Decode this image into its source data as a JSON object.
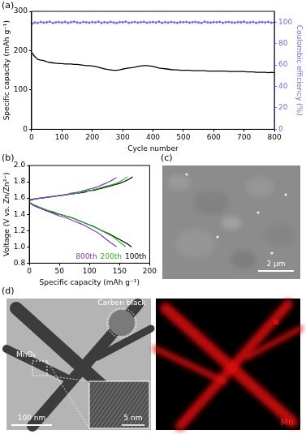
{
  "chart_data": [
    {
      "type": "line",
      "panel_label": "(a)",
      "xlabel": "Cycle number",
      "ylabel": "Specific capacity (mAh g⁻¹)",
      "y2label": "Coulombic efficiency (%)",
      "x": [
        1,
        10,
        20,
        30,
        40,
        50,
        60,
        70,
        80,
        90,
        100,
        110,
        120,
        130,
        140,
        150,
        160,
        170,
        180,
        190,
        200,
        210,
        220,
        230,
        240,
        250,
        260,
        270,
        280,
        290,
        300,
        310,
        320,
        330,
        340,
        350,
        360,
        370,
        380,
        390,
        400,
        410,
        420,
        430,
        440,
        450,
        460,
        470,
        480,
        490,
        500,
        510,
        520,
        530,
        540,
        550,
        560,
        570,
        580,
        590,
        600,
        610,
        620,
        630,
        640,
        650,
        660,
        670,
        680,
        690,
        700,
        710,
        720,
        730,
        740,
        750,
        760,
        770,
        780,
        790,
        800
      ],
      "series": [
        {
          "color": "#000000",
          "line_style": "solid",
          "axis": "y",
          "values": [
            195,
            185,
            178,
            176,
            175,
            172,
            170,
            169,
            168,
            167,
            167,
            166,
            166,
            166,
            165,
            165,
            164,
            163,
            162,
            162,
            161,
            160,
            158,
            156,
            154,
            152,
            151,
            150,
            150,
            151,
            153,
            155,
            156,
            157,
            158,
            160,
            161,
            162,
            162,
            161,
            160,
            158,
            156,
            155,
            154,
            153,
            152,
            151,
            151,
            150,
            150,
            150,
            150,
            149,
            149,
            149,
            149,
            149,
            148,
            148,
            148,
            148,
            148,
            148,
            148,
            147,
            147,
            147,
            147,
            147,
            147,
            146,
            146,
            146,
            145,
            145,
            145,
            145,
            144,
            145,
            144
          ]
        },
        {
          "color": "#7070e0",
          "line_style": "solid",
          "marker": "circle",
          "axis": "y2",
          "values": [
            98.5,
            99.6,
            99.2,
            100.1,
            99.4,
            99.8,
            100.3,
            99.1,
            99.7,
            100.0,
            99.5,
            100.2,
            99.3,
            99.9,
            100.4,
            99.6,
            99.2,
            100.1,
            99.8,
            99.4,
            100.0,
            99.7,
            100.3,
            99.2,
            99.9,
            99.5,
            100.2,
            99.6,
            99.1,
            100.0,
            99.8,
            100.4,
            99.3,
            99.7,
            100.1,
            99.5,
            99.9,
            100.2,
            99.4,
            99.8,
            100.0,
            99.6,
            100.3,
            99.2,
            99.9,
            99.5,
            100.1,
            99.7,
            99.3,
            100.0,
            99.8,
            100.2,
            99.4,
            99.9,
            100.1,
            99.6,
            99.2,
            100.3,
            99.7,
            99.5,
            100.0,
            99.8,
            100.2,
            99.3,
            99.9,
            100.1,
            99.6,
            99.4,
            100.0,
            99.8,
            100.3,
            99.5,
            99.7,
            100.1,
            99.2,
            99.9,
            100.0,
            99.6,
            100.2,
            99.4,
            99.8
          ]
        }
      ],
      "xlim": [
        0,
        800
      ],
      "xticks": [
        0,
        100,
        200,
        300,
        400,
        500,
        600,
        700,
        800
      ],
      "ylim": [
        0,
        300
      ],
      "yticks": [
        0,
        100,
        200,
        300
      ],
      "y2lim": [
        0,
        110
      ],
      "y2ticks": [
        0,
        20,
        40,
        60,
        80,
        100
      ],
      "grid": false
    },
    {
      "type": "line",
      "panel_label": "(b)",
      "xlabel": "Specific capacity (mAh g⁻¹)",
      "ylabel": "Voltage (V vs. Zn/Zn²⁺)",
      "series": [
        {
          "name": "800th",
          "color": "#7b3fc4",
          "discharge": {
            "x": [
              0,
              10,
              20,
              30,
              40,
              50,
              60,
              70,
              80,
              90,
              100,
              110,
              120,
              130,
              145
            ],
            "values": [
              1.54,
              1.5,
              1.47,
              1.44,
              1.41,
              1.38,
              1.36,
              1.33,
              1.3,
              1.27,
              1.23,
              1.19,
              1.14,
              1.08,
              1.0
            ]
          },
          "charge": {
            "x": [
              0,
              10,
              20,
              30,
              40,
              50,
              60,
              70,
              80,
              90,
              100,
              110,
              120,
              130,
              145
            ],
            "values": [
              1.58,
              1.59,
              1.6,
              1.61,
              1.62,
              1.63,
              1.64,
              1.66,
              1.67,
              1.69,
              1.71,
              1.73,
              1.76,
              1.79,
              1.85
            ]
          }
        },
        {
          "name": "200th",
          "color": "#33b033",
          "discharge": {
            "x": [
              0,
              10,
              20,
              30,
              40,
              50,
              60,
              70,
              80,
              90,
              100,
              110,
              120,
              130,
              140,
              150,
              160
            ],
            "values": [
              1.55,
              1.51,
              1.48,
              1.45,
              1.43,
              1.4,
              1.38,
              1.36,
              1.33,
              1.3,
              1.27,
              1.24,
              1.2,
              1.16,
              1.12,
              1.06,
              1.0
            ]
          },
          "charge": {
            "x": [
              0,
              10,
              20,
              30,
              40,
              50,
              60,
              70,
              80,
              90,
              100,
              110,
              120,
              130,
              140,
              150,
              163
            ],
            "values": [
              1.58,
              1.59,
              1.6,
              1.61,
              1.62,
              1.63,
              1.64,
              1.65,
              1.66,
              1.68,
              1.69,
              1.71,
              1.73,
              1.75,
              1.77,
              1.8,
              1.86
            ]
          }
        },
        {
          "name": "100th",
          "color": "#000000",
          "discharge": {
            "x": [
              0,
              5,
              10,
              20,
              30,
              40,
              50,
              60,
              70,
              80,
              90,
              100,
              110,
              120,
              130,
              140,
              150,
              160,
              170
            ],
            "values": [
              1.55,
              1.52,
              1.5,
              1.47,
              1.44,
              1.42,
              1.4,
              1.38,
              1.36,
              1.33,
              1.3,
              1.27,
              1.24,
              1.2,
              1.17,
              1.13,
              1.09,
              1.05,
              1.0
            ]
          },
          "charge": {
            "x": [
              0,
              5,
              10,
              20,
              30,
              40,
              50,
              60,
              70,
              80,
              90,
              100,
              110,
              120,
              130,
              140,
              150,
              160,
              172
            ],
            "values": [
              1.57,
              1.58,
              1.59,
              1.6,
              1.61,
              1.62,
              1.63,
              1.64,
              1.65,
              1.66,
              1.67,
              1.69,
              1.7,
              1.72,
              1.74,
              1.76,
              1.78,
              1.81,
              1.86
            ]
          }
        }
      ],
      "xlim": [
        0,
        200
      ],
      "xticks": [
        0,
        50,
        100,
        150,
        200
      ],
      "ylim": [
        0.8,
        2.0
      ],
      "yticks": [
        0.8,
        {
          "value": 1,
          "label": "1.0"
        },
        1.2,
        1.4,
        1.6,
        1.8,
        {
          "value": 2,
          "label": "2.0"
        }
      ],
      "grid": false,
      "legend": "lower right"
    }
  ],
  "image_panels": [
    {
      "panel_label": "(c)",
      "scale_bar": "2 μm"
    },
    {
      "panel_label": "(d)",
      "annotations": [
        "Carbon black",
        "MnO₂"
      ],
      "scale_bars": [
        "100 nm",
        "5 nm"
      ],
      "map_label": "Mn"
    }
  ]
}
